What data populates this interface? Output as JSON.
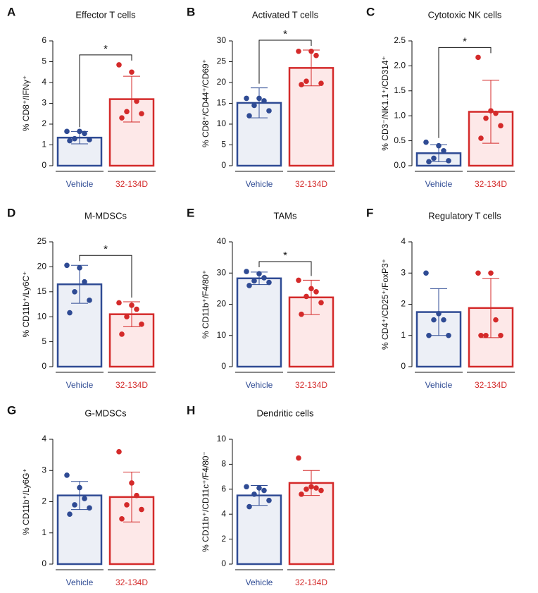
{
  "chart_data": [
    {
      "type": "bar",
      "panel": "A",
      "title": "Effector T cells",
      "ylabel": "% CD8⁺/IFNγ⁺",
      "categories": [
        "Vehicle",
        "32-134D"
      ],
      "colors": [
        "#2f4b94",
        "#d42a2a"
      ],
      "fill_colors": [
        "#eceff6",
        "#fde8e8"
      ],
      "values": [
        1.35,
        3.2
      ],
      "errors": [
        0.3,
        1.1
      ],
      "points": [
        [
          1.2,
          1.25,
          1.3,
          1.55,
          1.65,
          1.65
        ],
        [
          2.3,
          2.5,
          2.6,
          3.1,
          4.5,
          4.85
        ]
      ],
      "ylim": [
        0,
        6
      ],
      "yticks": [
        0,
        1,
        2,
        3,
        4,
        5,
        6
      ],
      "significance": "*"
    },
    {
      "type": "bar",
      "panel": "B",
      "title": "Activated T cells",
      "ylabel": "% CD8⁺/CD44⁺/CD69⁺",
      "categories": [
        "Vehicle",
        "32-134D"
      ],
      "colors": [
        "#2f4b94",
        "#d42a2a"
      ],
      "fill_colors": [
        "#eceff6",
        "#fde8e8"
      ],
      "values": [
        15.1,
        23.5
      ],
      "errors": [
        3.6,
        4.3
      ],
      "points": [
        [
          12,
          13.2,
          14.5,
          15.6,
          16.2,
          16.2
        ],
        [
          19.5,
          19.8,
          20.3,
          26.5,
          27.5,
          27.5
        ]
      ],
      "ylim": [
        0,
        30
      ],
      "yticks": [
        0,
        5,
        10,
        15,
        20,
        25,
        30
      ],
      "significance": "*"
    },
    {
      "type": "bar",
      "panel": "C",
      "title": "Cytotoxic NK cells",
      "ylabel": "% CD3⁻/NK1.1⁺/CD314⁺",
      "categories": [
        "Vehicle",
        "32-134D"
      ],
      "colors": [
        "#2f4b94",
        "#d42a2a"
      ],
      "fill_colors": [
        "#eceff6",
        "#fde8e8"
      ],
      "values": [
        0.25,
        1.08
      ],
      "errors": [
        0.17,
        0.63
      ],
      "points": [
        [
          0.08,
          0.1,
          0.15,
          0.3,
          0.4,
          0.47
        ],
        [
          0.55,
          0.8,
          0.95,
          1.05,
          1.1,
          2.17
        ]
      ],
      "ylim": [
        0,
        2.5
      ],
      "yticks": [
        {
          "value": 0,
          "label": "0.0"
        },
        0.5,
        {
          "value": 1,
          "label": "1.0"
        },
        1.5,
        {
          "value": 2,
          "label": "2.0"
        },
        2.5
      ],
      "significance": "*"
    },
    {
      "type": "bar",
      "panel": "D",
      "title": "M-MDSCs",
      "ylabel": "% CD11b⁺/Ly6C⁺",
      "categories": [
        "Vehicle",
        "32-134D"
      ],
      "colors": [
        "#2f4b94",
        "#d42a2a"
      ],
      "fill_colors": [
        "#eceff6",
        "#fde8e8"
      ],
      "values": [
        16.5,
        10.5
      ],
      "errors": [
        3.8,
        2.5
      ],
      "points": [
        [
          10.8,
          13.3,
          15,
          17,
          19.8,
          20.3
        ],
        [
          6.5,
          8.5,
          10,
          11.5,
          12.3,
          12.8
        ]
      ],
      "ylim": [
        0,
        25
      ],
      "yticks": [
        0,
        5,
        10,
        15,
        20,
        25
      ],
      "significance": "*"
    },
    {
      "type": "bar",
      "panel": "E",
      "title": "TAMs",
      "ylabel": "% CD11b⁺/F4/80⁺",
      "categories": [
        "Vehicle",
        "32-134D"
      ],
      "colors": [
        "#2f4b94",
        "#d42a2a"
      ],
      "fill_colors": [
        "#eceff6",
        "#fde8e8"
      ],
      "values": [
        28.3,
        22.2
      ],
      "errors": [
        2,
        5.5
      ],
      "points": [
        [
          26,
          27,
          27.5,
          28.5,
          29.8,
          30.5
        ],
        [
          16.8,
          20.5,
          22.5,
          24,
          25,
          27.7
        ]
      ],
      "ylim": [
        0,
        40
      ],
      "yticks": [
        0,
        10,
        20,
        30,
        40
      ],
      "significance": "*"
    },
    {
      "type": "bar",
      "panel": "F",
      "title": "Regulatory T cells",
      "ylabel": "% CD4⁺/CD25⁺/FoxP3⁺",
      "categories": [
        "Vehicle",
        "32-134D"
      ],
      "colors": [
        "#2f4b94",
        "#d42a2a"
      ],
      "fill_colors": [
        "#eceff6",
        "#fde8e8"
      ],
      "values": [
        1.75,
        1.88
      ],
      "errors": [
        0.75,
        0.95
      ],
      "points": [
        [
          1,
          1,
          1.5,
          1.5,
          1.7,
          3
        ],
        [
          1,
          1,
          1,
          1.5,
          3,
          3
        ]
      ],
      "ylim": [
        0,
        4
      ],
      "yticks": [
        0,
        1,
        2,
        3,
        4
      ]
    },
    {
      "type": "bar",
      "panel": "G",
      "title": "G-MDSCs",
      "ylabel": "% CD11b⁺/Ly6G⁺",
      "categories": [
        "Vehicle",
        "32-134D"
      ],
      "colors": [
        "#2f4b94",
        "#d42a2a"
      ],
      "fill_colors": [
        "#eceff6",
        "#fde8e8"
      ],
      "values": [
        2.2,
        2.15
      ],
      "errors": [
        0.45,
        0.8
      ],
      "points": [
        [
          1.6,
          1.8,
          1.9,
          2.1,
          2.45,
          2.85
        ],
        [
          1.45,
          1.75,
          1.9,
          2.2,
          2.6,
          3.6
        ]
      ],
      "ylim": [
        0,
        4
      ],
      "yticks": [
        0,
        1,
        2,
        3,
        4
      ]
    },
    {
      "type": "bar",
      "panel": "H",
      "title": "Dendritic cells",
      "ylabel": "% CD11b⁺/CD11c⁺/F4/80⁻",
      "categories": [
        "Vehicle",
        "32-134D"
      ],
      "colors": [
        "#2f4b94",
        "#d42a2a"
      ],
      "fill_colors": [
        "#eceff6",
        "#fde8e8"
      ],
      "values": [
        5.5,
        6.5
      ],
      "errors": [
        0.8,
        1
      ],
      "points": [
        [
          4.6,
          5.1,
          5.6,
          5.9,
          6.1,
          6.2
        ],
        [
          5.6,
          5.9,
          6,
          6.1,
          6.2,
          8.5
        ]
      ],
      "ylim": [
        0,
        10
      ],
      "yticks": [
        0,
        2,
        4,
        6,
        8,
        10
      ]
    }
  ]
}
